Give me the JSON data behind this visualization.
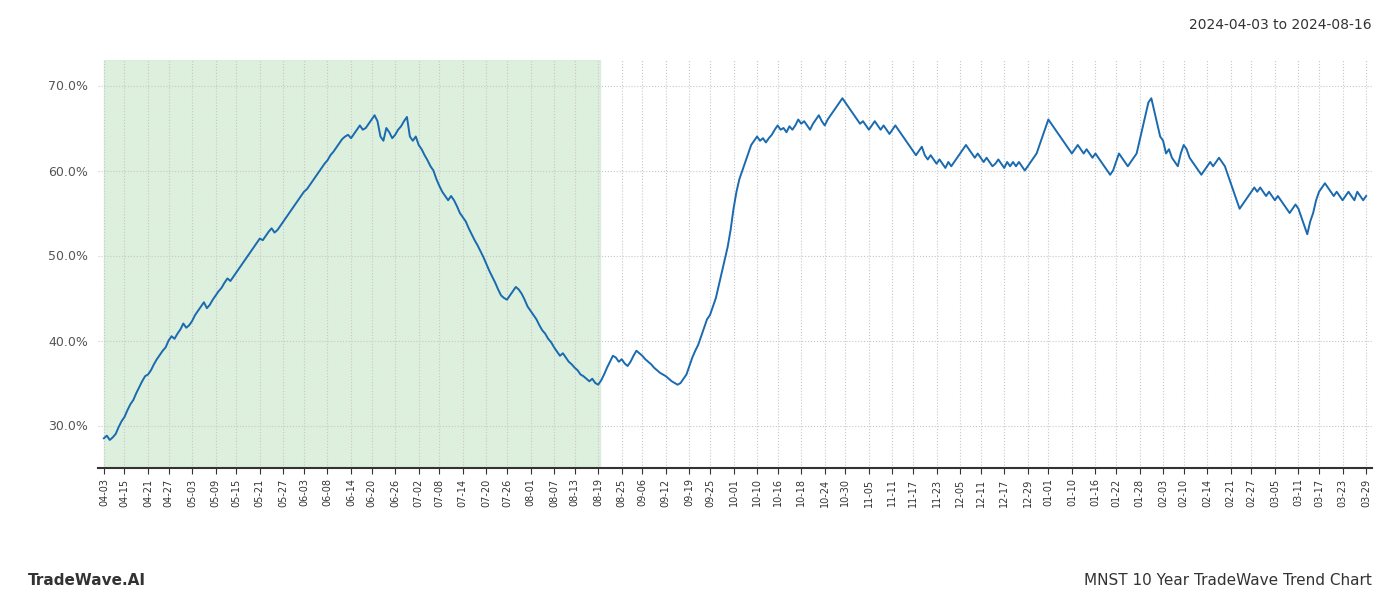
{
  "title_top_right": "2024-04-03 to 2024-08-16",
  "title_bottom_left": "TradeWave.AI",
  "title_bottom_right": "MNST 10 Year TradeWave Trend Chart",
  "ylim": [
    25.0,
    73.0
  ],
  "yticks": [
    30.0,
    40.0,
    50.0,
    60.0,
    70.0
  ],
  "line_color": "#1a6ab0",
  "line_width": 1.4,
  "shaded_region_color": "#d8edd8",
  "shaded_alpha": 0.85,
  "background_color": "#ffffff",
  "grid_color": "#c8c8c8",
  "grid_linestyle": "dotted",
  "x_labels": [
    "04-03",
    "04-15",
    "04-21",
    "04-27",
    "05-03",
    "05-09",
    "05-15",
    "05-21",
    "05-27",
    "06-03",
    "06-08",
    "06-14",
    "06-20",
    "06-26",
    "07-02",
    "07-08",
    "07-14",
    "07-20",
    "07-26",
    "08-01",
    "08-07",
    "08-13",
    "08-19",
    "08-25",
    "09-06",
    "09-12",
    "09-19",
    "09-25",
    "10-01",
    "10-10",
    "10-16",
    "10-18",
    "10-24",
    "10-30",
    "11-05",
    "11-11",
    "11-17",
    "11-23",
    "12-05",
    "12-11",
    "12-17",
    "12-29",
    "01-01",
    "01-10",
    "01-16",
    "01-22",
    "01-28",
    "02-03",
    "02-10",
    "02-14",
    "02-21",
    "02-27",
    "03-05",
    "03-11",
    "03-17",
    "03-23",
    "03-29"
  ],
  "shaded_start_label": "04-03",
  "shaded_end_label": "08-19",
  "values": [
    28.5,
    28.8,
    28.3,
    28.6,
    29.0,
    29.8,
    30.5,
    31.0,
    31.8,
    32.5,
    33.0,
    33.8,
    34.5,
    35.2,
    35.8,
    36.0,
    36.5,
    37.2,
    37.8,
    38.3,
    38.8,
    39.2,
    40.0,
    40.5,
    40.2,
    40.8,
    41.3,
    42.0,
    41.5,
    41.8,
    42.3,
    43.0,
    43.5,
    44.0,
    44.5,
    43.8,
    44.2,
    44.8,
    45.3,
    45.8,
    46.2,
    46.8,
    47.3,
    47.0,
    47.5,
    48.0,
    48.5,
    49.0,
    49.5,
    50.0,
    50.5,
    51.0,
    51.5,
    52.0,
    51.8,
    52.3,
    52.8,
    53.2,
    52.7,
    53.0,
    53.5,
    54.0,
    54.5,
    55.0,
    55.5,
    56.0,
    56.5,
    57.0,
    57.5,
    57.8,
    58.3,
    58.8,
    59.3,
    59.8,
    60.3,
    60.8,
    61.2,
    61.8,
    62.2,
    62.7,
    63.2,
    63.7,
    64.0,
    64.2,
    63.8,
    64.3,
    64.8,
    65.3,
    64.8,
    65.0,
    65.5,
    66.0,
    66.5,
    65.8,
    64.0,
    63.5,
    65.0,
    64.5,
    63.8,
    64.2,
    64.8,
    65.2,
    65.8,
    66.3,
    64.0,
    63.5,
    64.0,
    63.0,
    62.5,
    61.8,
    61.2,
    60.5,
    60.0,
    59.0,
    58.2,
    57.5,
    57.0,
    56.5,
    57.0,
    56.5,
    55.8,
    55.0,
    54.5,
    54.0,
    53.2,
    52.5,
    51.8,
    51.2,
    50.5,
    49.8,
    49.0,
    48.2,
    47.5,
    46.8,
    46.0,
    45.3,
    45.0,
    44.8,
    45.3,
    45.8,
    46.3,
    46.0,
    45.5,
    44.8,
    44.0,
    43.5,
    43.0,
    42.5,
    41.8,
    41.2,
    40.8,
    40.2,
    39.8,
    39.2,
    38.7,
    38.2,
    38.5,
    38.0,
    37.5,
    37.2,
    36.8,
    36.5,
    36.0,
    35.8,
    35.5,
    35.2,
    35.5,
    35.0,
    34.8,
    35.3,
    36.0,
    36.8,
    37.5,
    38.2,
    38.0,
    37.5,
    37.8,
    37.3,
    37.0,
    37.5,
    38.2,
    38.8,
    38.5,
    38.2,
    37.8,
    37.5,
    37.2,
    36.8,
    36.5,
    36.2,
    36.0,
    35.8,
    35.5,
    35.2,
    35.0,
    34.8,
    35.0,
    35.5,
    36.0,
    37.0,
    38.0,
    38.8,
    39.5,
    40.5,
    41.5,
    42.5,
    43.0,
    44.0,
    45.0,
    46.5,
    48.0,
    49.5,
    51.0,
    53.0,
    55.5,
    57.5,
    59.0,
    60.0,
    61.0,
    62.0,
    63.0,
    63.5,
    64.0,
    63.5,
    63.8,
    63.3,
    63.8,
    64.2,
    64.8,
    65.3,
    64.8,
    65.0,
    64.5,
    65.2,
    64.8,
    65.3,
    66.0,
    65.5,
    65.8,
    65.3,
    64.8,
    65.5,
    66.0,
    66.5,
    65.8,
    65.3,
    66.0,
    66.5,
    67.0,
    67.5,
    68.0,
    68.5,
    68.0,
    67.5,
    67.0,
    66.5,
    66.0,
    65.5,
    65.8,
    65.3,
    64.8,
    65.3,
    65.8,
    65.3,
    64.8,
    65.3,
    64.8,
    64.3,
    64.8,
    65.3,
    64.8,
    64.3,
    63.8,
    63.3,
    62.8,
    62.3,
    61.8,
    62.3,
    62.8,
    61.8,
    61.3,
    61.8,
    61.3,
    60.8,
    61.3,
    60.8,
    60.3,
    61.0,
    60.5,
    61.0,
    61.5,
    62.0,
    62.5,
    63.0,
    62.5,
    62.0,
    61.5,
    62.0,
    61.5,
    61.0,
    61.5,
    61.0,
    60.5,
    60.8,
    61.3,
    60.8,
    60.3,
    61.0,
    60.5,
    61.0,
    60.5,
    61.0,
    60.5,
    60.0,
    60.5,
    61.0,
    61.5,
    62.0,
    63.0,
    64.0,
    65.0,
    66.0,
    65.5,
    65.0,
    64.5,
    64.0,
    63.5,
    63.0,
    62.5,
    62.0,
    62.5,
    63.0,
    62.5,
    62.0,
    62.5,
    62.0,
    61.5,
    62.0,
    61.5,
    61.0,
    60.5,
    60.0,
    59.5,
    60.0,
    61.0,
    62.0,
    61.5,
    61.0,
    60.5,
    61.0,
    61.5,
    62.0,
    63.5,
    65.0,
    66.5,
    68.0,
    68.5,
    67.0,
    65.5,
    64.0,
    63.5,
    62.0,
    62.5,
    61.5,
    61.0,
    60.5,
    62.0,
    63.0,
    62.5,
    61.5,
    61.0,
    60.5,
    60.0,
    59.5,
    60.0,
    60.5,
    61.0,
    60.5,
    61.0,
    61.5,
    61.0,
    60.5,
    59.5,
    58.5,
    57.5,
    56.5,
    55.5,
    56.0,
    56.5,
    57.0,
    57.5,
    58.0,
    57.5,
    58.0,
    57.5,
    57.0,
    57.5,
    57.0,
    56.5,
    57.0,
    56.5,
    56.0,
    55.5,
    55.0,
    55.5,
    56.0,
    55.5,
    54.5,
    53.5,
    52.5,
    54.0,
    55.0,
    56.5,
    57.5,
    58.0,
    58.5,
    58.0,
    57.5,
    57.0,
    57.5,
    57.0,
    56.5,
    57.0,
    57.5,
    57.0,
    56.5,
    57.5,
    57.0,
    56.5,
    57.0
  ]
}
